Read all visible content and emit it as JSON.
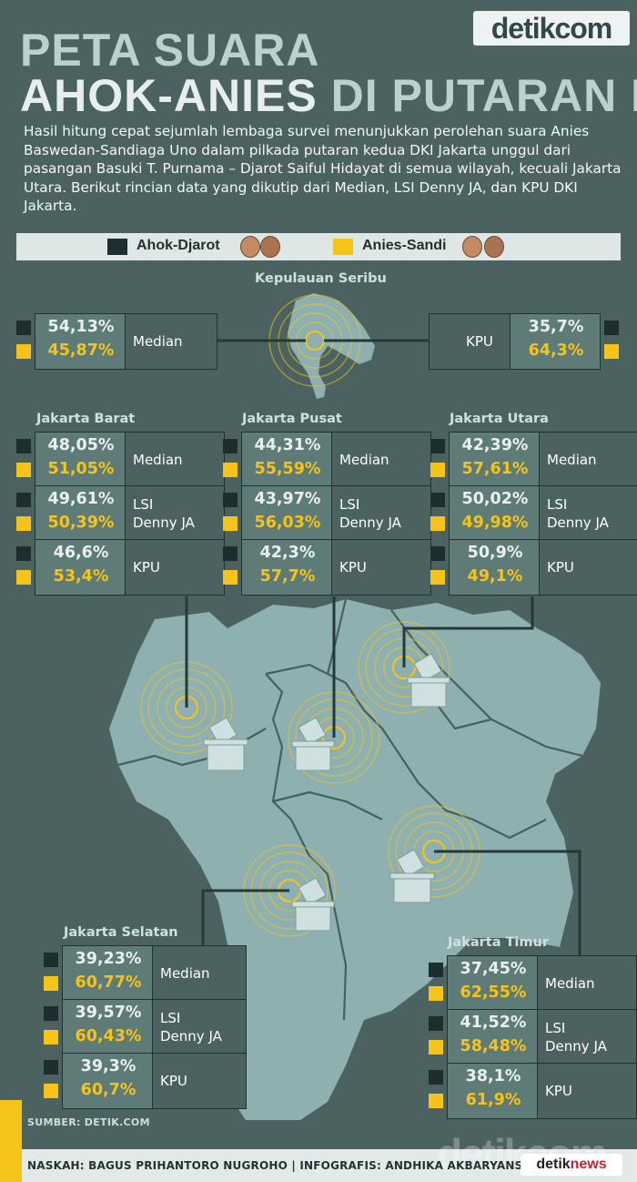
{
  "brand": {
    "logo": "detikcom",
    "watermark": "detikcom",
    "badge_a": "detik",
    "badge_b": "news"
  },
  "header": {
    "title_line1": "PETA SUARA",
    "title_line2a": "AHOK-ANIES",
    "title_line2b": "DI PUTARAN II",
    "intro": "Hasil hitung cepat sejumlah lembaga survei menunjukkan perolehan suara Anies Baswedan-Sandiaga Uno dalam pilkada putaran kedua DKI Jakarta unggul dari pasangan Basuki T. Purnama – Djarot Saiful Hidayat di semua wilayah, kecuali Jakarta Utara. Berikut rincian data yang dikutip dari  Median, LSI Denny JA, dan KPU DKI Jakarta."
  },
  "legend": {
    "ahok": {
      "label": "Ahok-Djarot",
      "color": "#1d2d30"
    },
    "anies": {
      "label": "Anies-Sandi",
      "color": "#f6c419"
    }
  },
  "colors": {
    "background": "#4b6260",
    "map": "#8fb0b0",
    "ahok": "#1d2d30",
    "anies": "#f6c419"
  },
  "chart_data": {
    "type": "table",
    "series": [
      {
        "name": "Ahok-Djarot"
      },
      {
        "name": "Anies-Sandi"
      }
    ],
    "regions": [
      {
        "name": "Kepulauan Seribu",
        "rows": [
          {
            "source": "Median",
            "ahok": "54,13%",
            "anies": "45,87%"
          },
          {
            "source": "KPU",
            "ahok": "35,7%",
            "anies": "64,3%"
          }
        ]
      },
      {
        "name": "Jakarta Barat",
        "rows": [
          {
            "source": "Median",
            "ahok": "48,05%",
            "anies": "51,05%"
          },
          {
            "source": "LSI Denny JA",
            "ahok": "49,61%",
            "anies": "50,39%"
          },
          {
            "source": "KPU",
            "ahok": "46,6%",
            "anies": "53,4%"
          }
        ]
      },
      {
        "name": "Jakarta Pusat",
        "rows": [
          {
            "source": "Median",
            "ahok": "44,31%",
            "anies": "55,59%"
          },
          {
            "source": "LSI Denny JA",
            "ahok": "43,97%",
            "anies": "56,03%"
          },
          {
            "source": "KPU",
            "ahok": "42,3%",
            "anies": "57,7%"
          }
        ]
      },
      {
        "name": "Jakarta Utara",
        "rows": [
          {
            "source": "Median",
            "ahok": "42,39%",
            "anies": "57,61%"
          },
          {
            "source": "LSI Denny JA",
            "ahok": "50,02%",
            "anies": "49,98%"
          },
          {
            "source": "KPU",
            "ahok": "50,9%",
            "anies": "49,1%"
          }
        ]
      },
      {
        "name": "Jakarta Selatan",
        "rows": [
          {
            "source": "Median",
            "ahok": "39,23%",
            "anies": "60,77%"
          },
          {
            "source": "LSI Denny JA",
            "ahok": "39,57%",
            "anies": "60,43%"
          },
          {
            "source": "KPU",
            "ahok": "39,3%",
            "anies": "60,7%"
          }
        ]
      },
      {
        "name": "Jakarta Timur",
        "rows": [
          {
            "source": "Median",
            "ahok": "37,45%",
            "anies": "62,55%"
          },
          {
            "source": "LSI Denny JA",
            "ahok": "41,52%",
            "anies": "58,48%"
          },
          {
            "source": "KPU",
            "ahok": "38,1%",
            "anies": "61,9%"
          }
        ]
      }
    ]
  },
  "footer": {
    "source": "SUMBER: DETIK.COM",
    "credit": "NASKAH: BAGUS PRIHANTORO NUGROHO | INFOGRAFIS: ANDHIKA AKBARYANSYAH"
  }
}
